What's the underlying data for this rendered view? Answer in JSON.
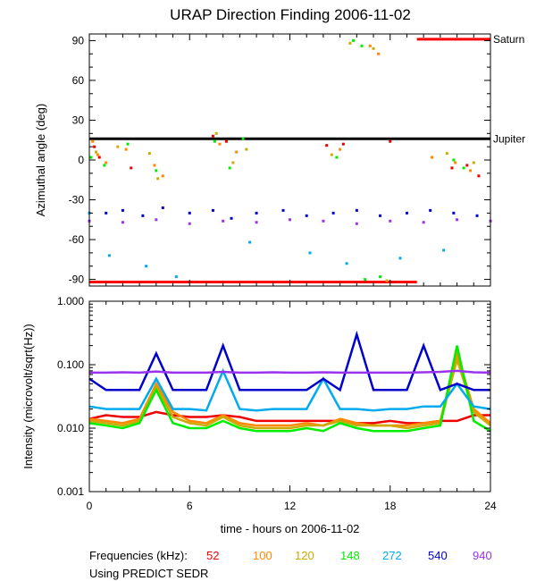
{
  "title": "URAP Direction Finding  2006-11-02",
  "chart_data": [
    {
      "type": "scatter",
      "panel": "top",
      "ylabel": "Azimuthal angle (deg)",
      "xlim": [
        0,
        24
      ],
      "ylim": [
        -95,
        95
      ],
      "yticks": [
        -90,
        -60,
        -30,
        0,
        30,
        60,
        90
      ],
      "yticklabels": [
        "-90",
        "-60",
        "-30",
        "0",
        "30",
        "60",
        "90"
      ],
      "reference_lines": [
        {
          "name": "Saturn",
          "color": "#ff0000",
          "segments": [
            {
              "x": [
                0.0,
                19.6
              ],
              "y": -92
            },
            {
              "x": [
                19.6,
                24.0
              ],
              "y": 91
            }
          ]
        },
        {
          "name": "Jupiter",
          "color": "#000000",
          "segments": [
            {
              "x": [
                0.0,
                24.0
              ],
              "y": 16
            }
          ]
        }
      ],
      "series": [
        {
          "name": "52",
          "color": "#ee0000",
          "points": [
            [
              0.3,
              10
            ],
            [
              0.6,
              2
            ],
            [
              2.5,
              -6
            ],
            [
              7.4,
              18
            ],
            [
              8.2,
              14
            ],
            [
              14.2,
              11
            ],
            [
              15.2,
              12
            ],
            [
              18.0,
              14
            ],
            [
              21.7,
              -6
            ],
            [
              22.6,
              -4
            ],
            [
              23.3,
              -12
            ]
          ]
        },
        {
          "name": "100",
          "color": "#ff8800",
          "points": [
            [
              0.2,
              14
            ],
            [
              0.5,
              4
            ],
            [
              1.0,
              -2
            ],
            [
              2.2,
              8
            ],
            [
              3.9,
              -4
            ],
            [
              4.4,
              -12
            ],
            [
              7.8,
              12
            ],
            [
              8.8,
              6
            ],
            [
              15.0,
              8
            ],
            [
              16.8,
              86
            ],
            [
              17.3,
              80
            ],
            [
              20.5,
              2
            ],
            [
              21.9,
              -2
            ],
            [
              22.8,
              -8
            ]
          ]
        },
        {
          "name": "120",
          "color": "#ccaa00",
          "points": [
            [
              0.4,
              6
            ],
            [
              1.7,
              10
            ],
            [
              3.6,
              5
            ],
            [
              4.1,
              -14
            ],
            [
              7.6,
              20
            ],
            [
              8.6,
              -2
            ],
            [
              9.4,
              8
            ],
            [
              14.5,
              4
            ],
            [
              15.6,
              88
            ],
            [
              17.0,
              84
            ],
            [
              17.8,
              -91
            ],
            [
              21.4,
              5
            ],
            [
              23.0,
              -2
            ]
          ]
        },
        {
          "name": "148",
          "color": "#00ee00",
          "points": [
            [
              0.1,
              2
            ],
            [
              0.9,
              -4
            ],
            [
              2.3,
              12
            ],
            [
              4.0,
              -8
            ],
            [
              7.5,
              14
            ],
            [
              8.4,
              -6
            ],
            [
              9.2,
              16
            ],
            [
              14.8,
              2
            ],
            [
              15.8,
              90
            ],
            [
              16.3,
              86
            ],
            [
              16.5,
              -90
            ],
            [
              17.4,
              -88
            ],
            [
              21.8,
              0
            ],
            [
              22.4,
              -6
            ]
          ]
        },
        {
          "name": "272",
          "color": "#00aaee",
          "points": [
            [
              0.0,
              -40
            ],
            [
              1.2,
              -72
            ],
            [
              3.4,
              -80
            ],
            [
              5.2,
              -88
            ],
            [
              9.6,
              -62
            ],
            [
              13.2,
              -70
            ],
            [
              15.4,
              -78
            ],
            [
              18.6,
              -74
            ],
            [
              21.2,
              -68
            ]
          ]
        },
        {
          "name": "540",
          "color": "#0000cc",
          "points": [
            [
              1.0,
              -40
            ],
            [
              2.0,
              -38
            ],
            [
              3.2,
              -42
            ],
            [
              4.4,
              -36
            ],
            [
              6.0,
              -40
            ],
            [
              7.4,
              -38
            ],
            [
              8.5,
              -44
            ],
            [
              10.0,
              -40
            ],
            [
              11.6,
              -38
            ],
            [
              13.0,
              -42
            ],
            [
              14.6,
              -40
            ],
            [
              16.0,
              -38
            ],
            [
              17.4,
              -42
            ],
            [
              19.0,
              -40
            ],
            [
              20.4,
              -38
            ],
            [
              21.8,
              -40
            ],
            [
              23.2,
              -42
            ]
          ]
        },
        {
          "name": "940",
          "color": "#9933ee",
          "points": [
            [
              0.0,
              -46
            ],
            [
              2.0,
              -47
            ],
            [
              4.0,
              -45
            ],
            [
              6.0,
              -48
            ],
            [
              8.0,
              -46
            ],
            [
              10.0,
              -47
            ],
            [
              12.0,
              -45
            ],
            [
              14.0,
              -46
            ],
            [
              16.0,
              -48
            ],
            [
              18.0,
              -46
            ],
            [
              20.0,
              -47
            ],
            [
              22.0,
              -45
            ],
            [
              24.0,
              -46
            ]
          ]
        }
      ]
    },
    {
      "type": "line",
      "panel": "bottom",
      "xlabel": "time - hours on 2006-11-02",
      "ylabel": "Intensity (microvolt/sqrt(Hz))",
      "xlim": [
        0,
        24
      ],
      "ylim": [
        0.001,
        1.0
      ],
      "yscale": "log",
      "xticks": [
        0,
        6,
        12,
        18,
        24
      ],
      "xticklabels": [
        "0",
        "6",
        "12",
        "18",
        "24"
      ],
      "yticks": [
        0.001,
        0.01,
        0.1,
        1.0
      ],
      "yticklabels": [
        "0.001",
        "0.010",
        "0.100",
        "1.000"
      ],
      "x": [
        0,
        1,
        2,
        3,
        4,
        5,
        6,
        7,
        8,
        9,
        10,
        11,
        12,
        13,
        14,
        15,
        16,
        17,
        18,
        19,
        20,
        21,
        22,
        23,
        24
      ],
      "series": [
        {
          "name": "52",
          "color": "#ee0000",
          "values": [
            0.014,
            0.016,
            0.015,
            0.015,
            0.018,
            0.016,
            0.015,
            0.015,
            0.016,
            0.015,
            0.013,
            0.013,
            0.013,
            0.013,
            0.013,
            0.013,
            0.012,
            0.012,
            0.013,
            0.012,
            0.012,
            0.013,
            0.013,
            0.016,
            0.016
          ]
        },
        {
          "name": "100",
          "color": "#ff8800",
          "values": [
            0.014,
            0.013,
            0.012,
            0.014,
            0.05,
            0.018,
            0.013,
            0.012,
            0.016,
            0.012,
            0.011,
            0.011,
            0.011,
            0.012,
            0.011,
            0.014,
            0.012,
            0.011,
            0.011,
            0.011,
            0.012,
            0.013,
            0.15,
            0.02,
            0.012
          ]
        },
        {
          "name": "120",
          "color": "#ccaa00",
          "values": [
            0.013,
            0.012,
            0.011,
            0.013,
            0.045,
            0.015,
            0.012,
            0.011,
            0.015,
            0.011,
            0.01,
            0.01,
            0.01,
            0.011,
            0.011,
            0.013,
            0.011,
            0.011,
            0.011,
            0.01,
            0.011,
            0.012,
            0.12,
            0.018,
            0.011
          ]
        },
        {
          "name": "148",
          "color": "#00ee00",
          "values": [
            0.012,
            0.011,
            0.01,
            0.012,
            0.04,
            0.012,
            0.01,
            0.01,
            0.013,
            0.01,
            0.009,
            0.009,
            0.009,
            0.01,
            0.009,
            0.012,
            0.01,
            0.009,
            0.009,
            0.009,
            0.01,
            0.011,
            0.2,
            0.013,
            0.009
          ]
        },
        {
          "name": "272",
          "color": "#00aaee",
          "values": [
            0.022,
            0.02,
            0.02,
            0.02,
            0.06,
            0.02,
            0.02,
            0.019,
            0.08,
            0.02,
            0.019,
            0.02,
            0.02,
            0.02,
            0.06,
            0.02,
            0.02,
            0.019,
            0.02,
            0.02,
            0.022,
            0.022,
            0.05,
            0.022,
            0.02
          ]
        },
        {
          "name": "540",
          "color": "#0000cc",
          "values": [
            0.06,
            0.04,
            0.04,
            0.04,
            0.15,
            0.04,
            0.04,
            0.04,
            0.2,
            0.04,
            0.04,
            0.04,
            0.04,
            0.04,
            0.06,
            0.04,
            0.3,
            0.04,
            0.04,
            0.04,
            0.2,
            0.04,
            0.05,
            0.04,
            0.04
          ]
        },
        {
          "name": "940",
          "color": "#9933ee",
          "values": [
            0.075,
            0.075,
            0.076,
            0.075,
            0.078,
            0.075,
            0.075,
            0.075,
            0.077,
            0.075,
            0.075,
            0.076,
            0.075,
            0.075,
            0.076,
            0.075,
            0.075,
            0.075,
            0.075,
            0.075,
            0.076,
            0.077,
            0.08,
            0.076,
            0.075
          ]
        }
      ]
    }
  ],
  "legend": {
    "label": "Frequencies (kHz):",
    "items": [
      "52",
      "100",
      "120",
      "148",
      "272",
      "540",
      "940"
    ],
    "colors": [
      "#ee0000",
      "#ff8800",
      "#ccaa00",
      "#00ee00",
      "#00aaee",
      "#0000cc",
      "#9933ee"
    ]
  },
  "footnote": "Using PREDICT SEDR"
}
